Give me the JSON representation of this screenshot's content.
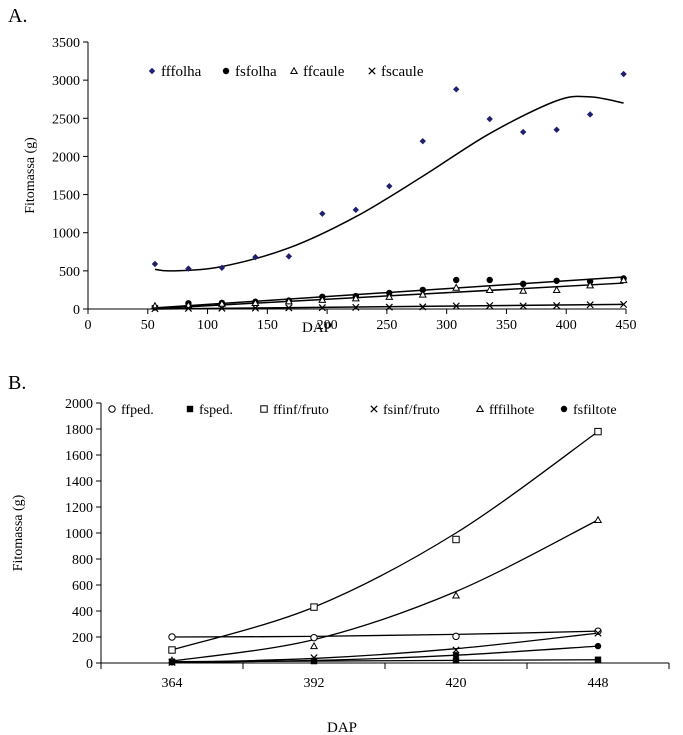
{
  "chart_data": [
    {
      "type": "scatter",
      "panel_label": "A.",
      "xlabel": "DAP",
      "ylabel": "Fitomassa (g)",
      "xlim": [
        0,
        450
      ],
      "ylim": [
        0,
        3500
      ],
      "xticks": [
        0,
        50,
        100,
        150,
        200,
        250,
        300,
        350,
        400,
        450
      ],
      "yticks": [
        0,
        500,
        1000,
        1500,
        2000,
        2500,
        3000,
        3500
      ],
      "legend_position": "top-left",
      "x": [
        56,
        84,
        112,
        140,
        168,
        196,
        224,
        252,
        280,
        308,
        336,
        364,
        392,
        420,
        448
      ],
      "series": [
        {
          "name": "fffolha",
          "marker": "diamond-filled",
          "color": "#1f1f6e",
          "values": [
            590,
            530,
            540,
            680,
            690,
            1250,
            1300,
            1610,
            2200,
            2880,
            2490,
            2320,
            2350,
            2550,
            3080
          ],
          "trend": {
            "kind": "cubic",
            "from": 56,
            "to": 448,
            "points": [
              [
                56,
                520
              ],
              [
                70,
                500
              ],
              [
                110,
                550
              ],
              [
                168,
                800
              ],
              [
                224,
                1210
              ],
              [
                280,
                1740
              ],
              [
                336,
                2300
              ],
              [
                392,
                2730
              ],
              [
                420,
                2780
              ],
              [
                448,
                2700
              ]
            ]
          }
        },
        {
          "name": "fsfolha",
          "marker": "circle-filled",
          "color": "#000000",
          "values": [
            20,
            75,
            80,
            95,
            110,
            160,
            170,
            210,
            250,
            380,
            380,
            330,
            370,
            360,
            400
          ],
          "trend": {
            "kind": "linear",
            "from": 56,
            "to": 448,
            "points": [
              [
                56,
                15
              ],
              [
                448,
                420
              ]
            ]
          }
        },
        {
          "name": "ffcaule",
          "marker": "triangle-open",
          "color": "#000000",
          "values": [
            40,
            50,
            70,
            80,
            100,
            120,
            140,
            160,
            190,
            280,
            250,
            240,
            250,
            310,
            380
          ],
          "trend": {
            "kind": "linear",
            "from": 56,
            "to": 448,
            "points": [
              [
                56,
                5
              ],
              [
                448,
                340
              ]
            ]
          }
        },
        {
          "name": "fscaule",
          "marker": "x",
          "color": "#000000",
          "values": [
            5,
            8,
            10,
            12,
            14,
            18,
            22,
            25,
            28,
            40,
            45,
            40,
            45,
            55,
            60
          ],
          "trend": {
            "kind": "linear",
            "from": 56,
            "to": 448,
            "points": [
              [
                56,
                0
              ],
              [
                448,
                60
              ]
            ]
          }
        }
      ]
    },
    {
      "type": "scatter",
      "panel_label": "B.",
      "xlabel": "DAP",
      "ylabel": "Fitomassa (g)",
      "x_categories": [
        "364",
        "392",
        "420",
        "448"
      ],
      "ylim": [
        0,
        2000
      ],
      "yticks": [
        0,
        200,
        400,
        600,
        800,
        1000,
        1200,
        1400,
        1600,
        1800,
        2000
      ],
      "legend_position": "top",
      "series": [
        {
          "name": "ffped.",
          "marker": "circle-open",
          "values": [
            200,
            195,
            205,
            245
          ],
          "trend": [
            200,
            205,
            220,
            245
          ]
        },
        {
          "name": "fsped.",
          "marker": "square-filled",
          "values": [
            10,
            15,
            20,
            25
          ],
          "trend": [
            10,
            15,
            20,
            25
          ]
        },
        {
          "name": "ffinf/fruto",
          "marker": "square-open",
          "values": [
            100,
            430,
            950,
            1780
          ],
          "trend": [
            100,
            430,
            1000,
            1780
          ]
        },
        {
          "name": "fsinf/fruto",
          "marker": "x",
          "values": [
            5,
            40,
            100,
            230
          ],
          "trend": [
            5,
            35,
            110,
            230
          ]
        },
        {
          "name": "fffilhote",
          "marker": "triangle-open",
          "values": [
            20,
            130,
            520,
            1100
          ],
          "trend": [
            15,
            180,
            550,
            1100
          ]
        },
        {
          "name": "fsfiltote",
          "marker": "circle-filled",
          "values": [
            5,
            20,
            60,
            130
          ],
          "trend": [
            5,
            20,
            60,
            130
          ]
        }
      ]
    }
  ]
}
